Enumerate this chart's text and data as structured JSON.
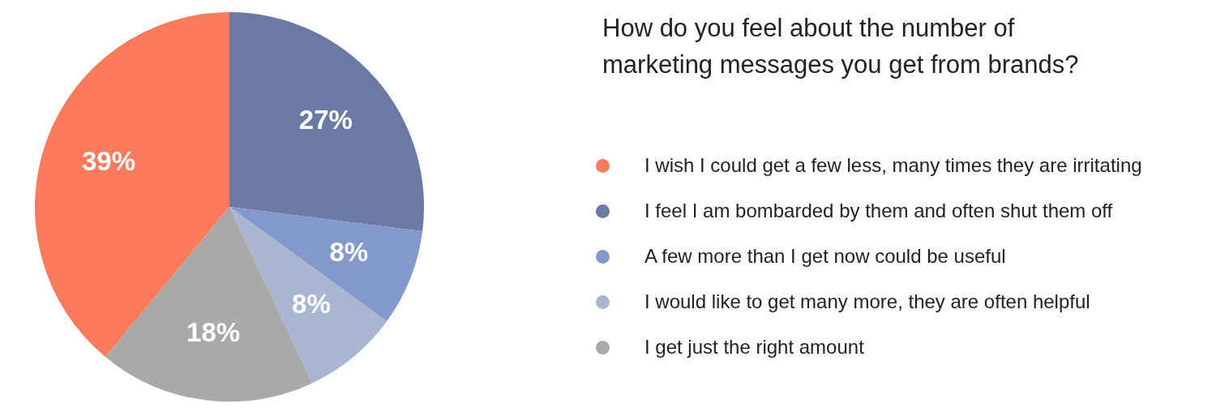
{
  "chart_data": {
    "type": "pie",
    "title": "How do you feel about the number of marketing messages you get from brands?",
    "categories": [
      "I wish I could get a few less, many times they are irritating",
      "I feel I am bombarded by them and often shut them off",
      "A few more than I get now could be useful",
      "I would like to get many more, they are often helpful",
      "I get just the right amount"
    ],
    "values": [
      39,
      27,
      8,
      8,
      18
    ],
    "colors": [
      "#fd7b5c",
      "#6a7aa3",
      "#8399cb",
      "#a8b6d2",
      "#a9a9a9"
    ],
    "value_labels": [
      "39%",
      "27%",
      "8%",
      "8%",
      "18%"
    ],
    "legend": "right"
  }
}
